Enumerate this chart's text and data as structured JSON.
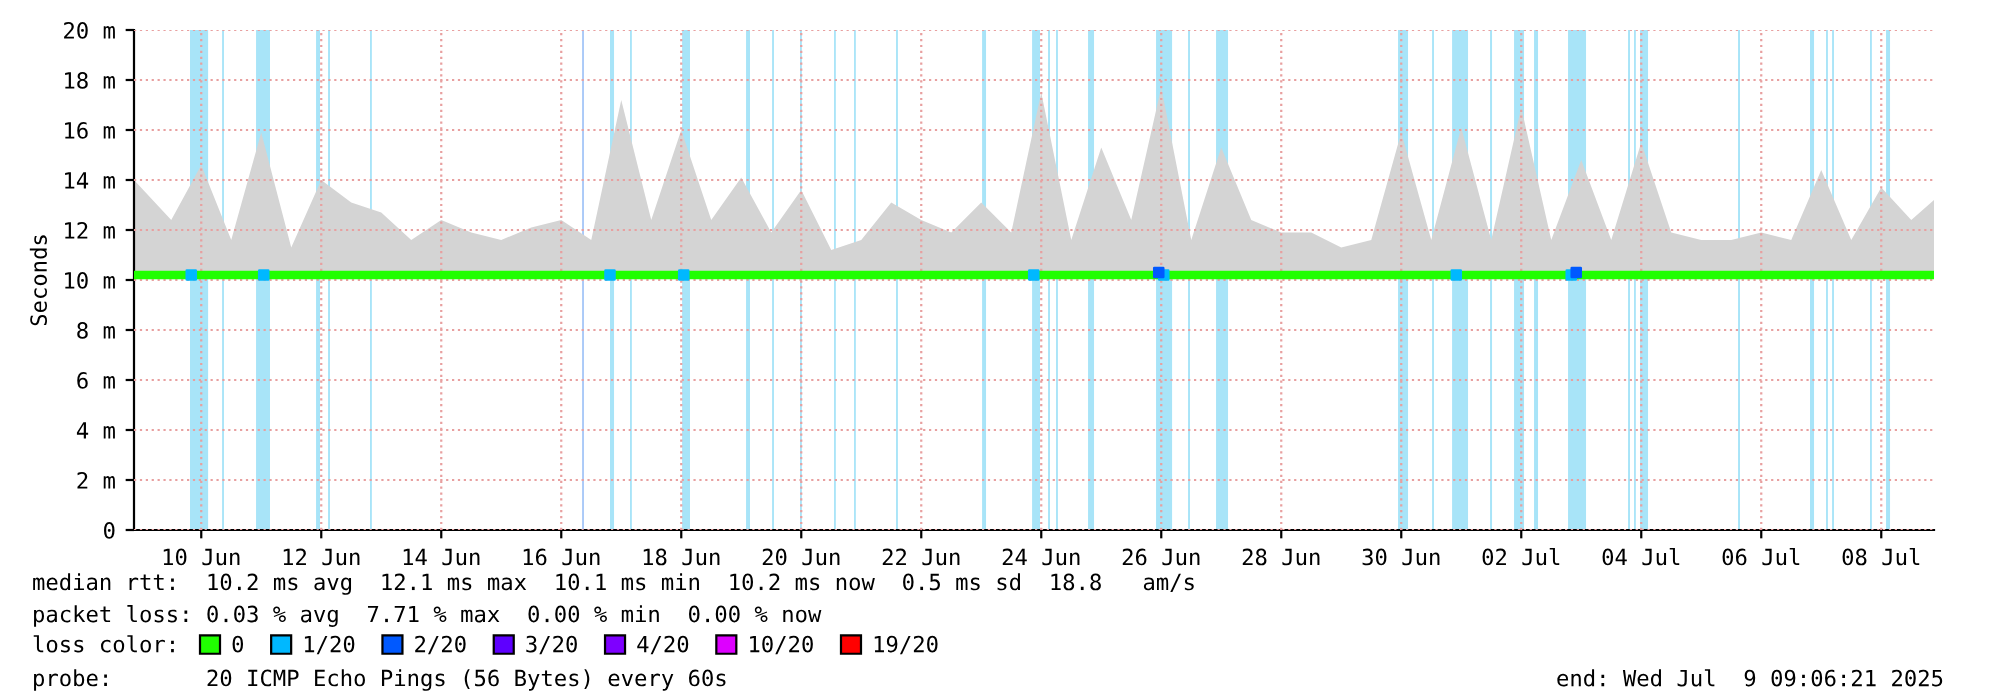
{
  "chart_data": {
    "type": "line",
    "ylabel": "Seconds",
    "xlim": [
      "2025-06-09T09:06",
      "2025-07-09T09:06"
    ],
    "xticks": [
      {
        "value": "2025-06-10T12:00",
        "label": "10 Jun"
      },
      {
        "value": "2025-06-12T12:00",
        "label": "12 Jun"
      },
      {
        "value": "2025-06-14T12:00",
        "label": "14 Jun"
      },
      {
        "value": "2025-06-16T12:00",
        "label": "16 Jun"
      },
      {
        "value": "2025-06-18T12:00",
        "label": "18 Jun"
      },
      {
        "value": "2025-06-20T12:00",
        "label": "20 Jun"
      },
      {
        "value": "2025-06-22T12:00",
        "label": "22 Jun"
      },
      {
        "value": "2025-06-24T12:00",
        "label": "24 Jun"
      },
      {
        "value": "2025-06-26T12:00",
        "label": "26 Jun"
      },
      {
        "value": "2025-06-28T12:00",
        "label": "28 Jun"
      },
      {
        "value": "2025-06-30T12:00",
        "label": "30 Jun"
      },
      {
        "value": "2025-07-02T12:00",
        "label": "02 Jul"
      },
      {
        "value": "2025-07-04T12:00",
        "label": "04 Jul"
      },
      {
        "value": "2025-07-06T12:00",
        "label": "06 Jul"
      },
      {
        "value": "2025-07-08T12:00",
        "label": "08 Jul"
      }
    ],
    "ylim": [
      0,
      20
    ],
    "yticks": [
      {
        "value": 0,
        "label": "0"
      },
      {
        "value": 2,
        "label": "2 m"
      },
      {
        "value": 4,
        "label": "4 m"
      },
      {
        "value": 6,
        "label": "6 m"
      },
      {
        "value": 8,
        "label": "8 m"
      },
      {
        "value": 10,
        "label": "10 m"
      },
      {
        "value": 12,
        "label": "12 m"
      },
      {
        "value": 14,
        "label": "14 m"
      },
      {
        "value": 16,
        "label": "16 m"
      },
      {
        "value": 18,
        "label": "18 m"
      },
      {
        "value": 20,
        "label": "20 m"
      }
    ],
    "grid": true,
    "legend": "bottom left",
    "legend_title": "loss color:",
    "series": [
      {
        "name": "0",
        "color": "#20ff00",
        "x": [
          "2025-06-09T09:06",
          "2025-06-10T00:00",
          "2025-06-10T12:00",
          "2025-06-11T00:00",
          "2025-06-11T12:00",
          "2025-06-12T00:00",
          "2025-06-12T12:00",
          "2025-06-13T00:00",
          "2025-06-13T12:00",
          "2025-06-14T00:00",
          "2025-06-14T12:00",
          "2025-06-15T00:00",
          "2025-06-15T12:00",
          "2025-06-16T00:00",
          "2025-06-16T12:00",
          "2025-06-17T00:00",
          "2025-06-17T12:00",
          "2025-06-18T00:00",
          "2025-06-18T12:00",
          "2025-06-19T00:00",
          "2025-06-19T12:00",
          "2025-06-20T00:00",
          "2025-06-20T12:00",
          "2025-06-21T00:00",
          "2025-06-21T12:00",
          "2025-06-22T00:00",
          "2025-06-22T12:00",
          "2025-06-23T00:00",
          "2025-06-23T12:00",
          "2025-06-24T00:00",
          "2025-06-24T12:00",
          "2025-06-25T00:00",
          "2025-06-25T12:00",
          "2025-06-26T00:00",
          "2025-06-26T12:00",
          "2025-06-27T00:00",
          "2025-06-27T12:00",
          "2025-06-28T00:00",
          "2025-06-28T12:00",
          "2025-06-29T00:00",
          "2025-06-29T12:00",
          "2025-06-30T00:00",
          "2025-06-30T12:00",
          "2025-07-01T00:00",
          "2025-07-01T12:00",
          "2025-07-02T00:00",
          "2025-07-02T12:00",
          "2025-07-03T00:00",
          "2025-07-03T12:00",
          "2025-07-04T00:00",
          "2025-07-04T12:00",
          "2025-07-05T00:00",
          "2025-07-05T12:00",
          "2025-07-06T00:00",
          "2025-07-06T12:00",
          "2025-07-07T00:00",
          "2025-07-07T12:00",
          "2025-07-08T00:00",
          "2025-07-08T12:00",
          "2025-07-09T00:00",
          "2025-07-09T09:06"
        ],
        "values": [
          10.2,
          10.2,
          10.2,
          10.2,
          10.2,
          10.2,
          10.2,
          10.2,
          10.2,
          10.2,
          10.2,
          10.2,
          10.2,
          10.2,
          10.2,
          10.2,
          10.2,
          10.2,
          10.2,
          10.2,
          10.2,
          10.2,
          10.2,
          10.2,
          10.2,
          10.2,
          10.2,
          10.2,
          10.2,
          10.2,
          10.2,
          10.2,
          10.2,
          10.2,
          10.2,
          10.2,
          10.2,
          10.2,
          10.2,
          10.2,
          10.2,
          10.2,
          10.2,
          10.2,
          10.2,
          10.2,
          10.2,
          10.2,
          10.2,
          10.2,
          10.2,
          10.2,
          10.2,
          10.2,
          10.2,
          10.2,
          10.2,
          10.2,
          10.2,
          10.2,
          10.2
        ],
        "lower": [
          10.1,
          10.1,
          10.1,
          10.1,
          10.1,
          10.1,
          10.1,
          10.1,
          10.1,
          10.1,
          10.1,
          10.1,
          10.1,
          10.1,
          10.1,
          10.1,
          10.1,
          10.1,
          10.1,
          10.1,
          10.1,
          10.1,
          10.1,
          10.1,
          10.1,
          10.1,
          10.1,
          10.1,
          10.1,
          10.1,
          10.1,
          10.1,
          10.1,
          10.1,
          10.1,
          10.1,
          10.1,
          10.1,
          10.1,
          10.1,
          10.1,
          10.1,
          10.1,
          10.1,
          10.1,
          10.1,
          10.1,
          10.1,
          10.1,
          10.1,
          10.1,
          10.1,
          10.1,
          10.1,
          10.1,
          10.1,
          10.1,
          10.1,
          10.1,
          10.1,
          10.1
        ],
        "upper": [
          14.0,
          12.4,
          14.6,
          11.6,
          15.9,
          11.3,
          14.0,
          13.1,
          12.7,
          11.6,
          12.4,
          11.9,
          11.6,
          12.1,
          12.4,
          11.6,
          17.2,
          12.4,
          16.0,
          12.4,
          14.1,
          11.9,
          13.6,
          11.2,
          11.6,
          13.1,
          12.4,
          11.9,
          13.1,
          11.9,
          17.5,
          11.6,
          15.3,
          12.4,
          17.7,
          11.6,
          15.3,
          12.4,
          11.9,
          11.9,
          11.3,
          11.6,
          15.9,
          11.6,
          16.1,
          11.6,
          16.9,
          11.6,
          14.8,
          11.6,
          15.5,
          11.9,
          11.6,
          11.6,
          11.9,
          11.6,
          14.4,
          11.6,
          13.7,
          12.4,
          13.2
        ]
      },
      {
        "name": "1/20",
        "type": "scatter",
        "color": "#00b8ff",
        "x": [
          "2025-06-10T08:00",
          "2025-06-11T13:00",
          "2025-06-17T07:30",
          "2025-06-18T13:00",
          "2025-06-24T09:00",
          "2025-06-26T13:00",
          "2025-07-01T10:00",
          "2025-07-03T08:00"
        ],
        "values": [
          10.2,
          10.2,
          10.2,
          10.2,
          10.2,
          10.2,
          10.2,
          10.2
        ]
      },
      {
        "name": "2/20",
        "type": "scatter",
        "color": "#0059ff",
        "x": [
          "2025-06-26T11:00",
          "2025-07-03T10:00"
        ],
        "values": [
          10.3,
          10.3
        ]
      },
      {
        "name": "3/20",
        "type": "scatter",
        "color": "#5e00ff"
      },
      {
        "name": "4/20",
        "type": "scatter",
        "color": "#7e00ff"
      },
      {
        "name": "10/20",
        "type": "scatter",
        "color": "#dd00ff"
      },
      {
        "name": "19/20",
        "type": "scatter",
        "color": "#ff0000"
      }
    ],
    "bands": [
      {
        "axis": "x",
        "from": "2025-06-10T07:30",
        "to": "2025-06-10T14:45",
        "color": "#a8e4f8"
      },
      {
        "axis": "x",
        "from": "2025-06-10T20:20",
        "to": "2025-06-10T21:05",
        "color": "#a8e4f8"
      },
      {
        "axis": "x",
        "from": "2025-06-11T09:55",
        "to": "2025-06-11T15:30",
        "color": "#a8e4f8"
      },
      {
        "axis": "x",
        "from": "2025-06-12T09:55",
        "to": "2025-06-12T11:30",
        "color": "#a8e4f8"
      },
      {
        "axis": "x",
        "from": "2025-06-12T14:43",
        "to": "2025-06-12T15:30",
        "color": "#a8e4f8"
      },
      {
        "axis": "x",
        "from": "2025-06-13T07:30",
        "to": "2025-06-13T08:15",
        "color": "#a8e4f8"
      },
      {
        "axis": "x",
        "from": "2025-06-16T20:20",
        "to": "2025-06-16T21:05",
        "color": "#a8c8f8"
      },
      {
        "axis": "x",
        "from": "2025-06-17T07:30",
        "to": "2025-06-17T09:07",
        "color": "#a8e4f8"
      },
      {
        "axis": "x",
        "from": "2025-06-17T15:30",
        "to": "2025-06-17T16:15",
        "color": "#a8e4f8"
      },
      {
        "axis": "x",
        "from": "2025-06-18T12:20",
        "to": "2025-06-18T15:30",
        "color": "#a8e4f8"
      },
      {
        "axis": "x",
        "from": "2025-06-19T13:55",
        "to": "2025-06-19T15:30",
        "color": "#a8e4f8"
      },
      {
        "axis": "x",
        "from": "2025-06-20T00:20",
        "to": "2025-06-20T01:05",
        "color": "#a8e4f8"
      },
      {
        "axis": "x",
        "from": "2025-06-20T11:30",
        "to": "2025-06-20T12:15",
        "color": "#a8e4f8"
      },
      {
        "axis": "x",
        "from": "2025-06-21T01:07",
        "to": "2025-06-21T01:50",
        "color": "#a8e4f8"
      },
      {
        "axis": "x",
        "from": "2025-06-21T09:07",
        "to": "2025-06-21T09:50",
        "color": "#a8e4f8"
      },
      {
        "axis": "x",
        "from": "2025-06-22T01:55",
        "to": "2025-06-22T02:40",
        "color": "#a8e4f8"
      },
      {
        "axis": "x",
        "from": "2025-06-23T12:20",
        "to": "2025-06-23T13:55",
        "color": "#a8e4f8"
      },
      {
        "axis": "x",
        "from": "2025-06-24T08:20",
        "to": "2025-06-24T11:30",
        "color": "#a8e4f8"
      },
      {
        "axis": "x",
        "from": "2025-06-24T14:43",
        "to": "2025-06-24T15:30",
        "color": "#a8e4f8"
      },
      {
        "axis": "x",
        "from": "2025-06-24T17:55",
        "to": "2025-06-24T18:40",
        "color": "#a8e4f8"
      },
      {
        "axis": "x",
        "from": "2025-06-25T06:43",
        "to": "2025-06-25T09:07",
        "color": "#a8e4f8"
      },
      {
        "axis": "x",
        "from": "2025-06-26T09:55",
        "to": "2025-06-26T16:20",
        "color": "#a8e4f8"
      },
      {
        "axis": "x",
        "from": "2025-06-26T22:43",
        "to": "2025-06-26T23:30",
        "color": "#a8e4f8"
      },
      {
        "axis": "x",
        "from": "2025-06-27T09:55",
        "to": "2025-06-27T14:43",
        "color": "#a8e4f8"
      },
      {
        "axis": "x",
        "from": "2025-06-30T10:43",
        "to": "2025-06-30T14:43",
        "color": "#a8e4f8"
      },
      {
        "axis": "x",
        "from": "2025-07-01T00:20",
        "to": "2025-07-01T01:05",
        "color": "#a8e4f8"
      },
      {
        "axis": "x",
        "from": "2025-07-01T08:20",
        "to": "2025-07-01T14:43",
        "color": "#a8e4f8"
      },
      {
        "axis": "x",
        "from": "2025-07-01T23:31",
        "to": "2025-07-02T00:19",
        "color": "#a8e4f8"
      },
      {
        "axis": "x",
        "from": "2025-07-02T09:07",
        "to": "2025-07-02T13:07",
        "color": "#a8e4f8"
      },
      {
        "axis": "x",
        "from": "2025-07-02T17:07",
        "to": "2025-07-02T18:43",
        "color": "#a8e4f8"
      },
      {
        "axis": "x",
        "from": "2025-07-03T06:43",
        "to": "2025-07-03T13:55",
        "color": "#a8e4f8"
      },
      {
        "axis": "x",
        "from": "2025-07-04T06:43",
        "to": "2025-07-04T07:30",
        "color": "#a8e4f8"
      },
      {
        "axis": "x",
        "from": "2025-07-04T09:07",
        "to": "2025-07-04T09:50",
        "color": "#a8e4f8"
      },
      {
        "axis": "x",
        "from": "2025-07-04T11:31",
        "to": "2025-07-04T14:43",
        "color": "#a8e4f8"
      },
      {
        "axis": "x",
        "from": "2025-07-06T02:43",
        "to": "2025-07-06T03:30",
        "color": "#a8e4f8"
      },
      {
        "axis": "x",
        "from": "2025-07-07T07:30",
        "to": "2025-07-07T09:07",
        "color": "#a8e4f8"
      },
      {
        "axis": "x",
        "from": "2025-07-07T13:55",
        "to": "2025-07-07T14:40",
        "color": "#a8e4f8"
      },
      {
        "axis": "x",
        "from": "2025-07-07T16:20",
        "to": "2025-07-07T17:05",
        "color": "#a8e4f8"
      },
      {
        "axis": "x",
        "from": "2025-07-08T07:30",
        "to": "2025-07-08T08:15",
        "color": "#a8e4f8"
      },
      {
        "axis": "x",
        "from": "2025-07-08T13:55",
        "to": "2025-07-08T15:31",
        "color": "#a8e4f8"
      }
    ],
    "annotations": [
      "median rtt:  10.2 ms avg  12.1 ms max  10.1 ms min  10.2 ms now  0.5 ms sd  18.8   am/s",
      "packet loss: 0.03 % avg  7.71 % max  0.00 % min  0.00 % now",
      "probe:       20 ICMP Echo Pings (56 Bytes) every 60s",
      "end: Wed Jul  9 09:06:21 2025"
    ]
  }
}
